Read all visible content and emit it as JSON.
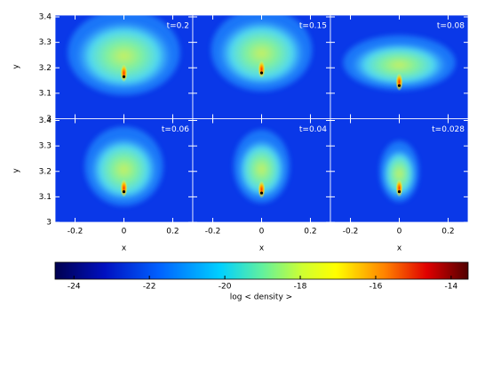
{
  "chart_data": {
    "type": "image-grid",
    "panels": [
      {
        "label": "t=0.2"
      },
      {
        "label": "t=0.15"
      },
      {
        "label": "t=0.08"
      },
      {
        "label": "t=0.06"
      },
      {
        "label": "t=0.04"
      },
      {
        "label": "t=0.028"
      }
    ],
    "xlabel": "x",
    "ylabel": "y",
    "xlim": [
      -0.282,
      0.282
    ],
    "xticks": [
      -0.2,
      0,
      0.2
    ],
    "ylim": [
      3.0,
      3.407
    ],
    "yticks": [
      3,
      3.1,
      3.2,
      3.3,
      3.4
    ],
    "colorbar": {
      "label": "log < density >",
      "lim": [
        -24.5,
        -13.55
      ],
      "ticks": [
        -24,
        -22,
        -20,
        -18,
        -16,
        -14
      ]
    }
  }
}
